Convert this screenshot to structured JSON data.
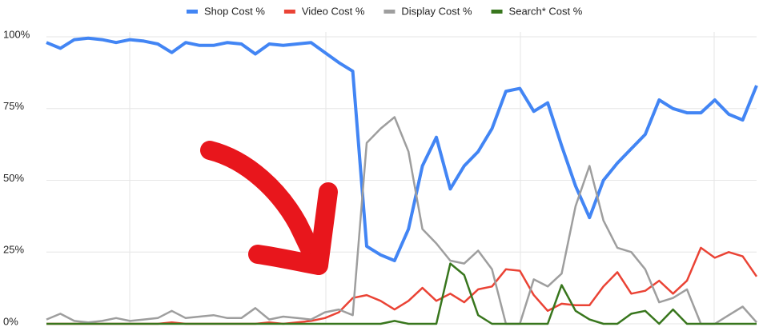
{
  "chart_data": {
    "type": "line",
    "series": [
      {
        "name": "Shop Cost %",
        "color": "#4285f4",
        "values": [
          98,
          96,
          99,
          99.5,
          99,
          98,
          99,
          98.5,
          97.5,
          94.5,
          98,
          97,
          97,
          98,
          97.5,
          94,
          97.5,
          97,
          97.5,
          98,
          94.5,
          91,
          88,
          27,
          24,
          22,
          33,
          55,
          65,
          47,
          55,
          60,
          68,
          81,
          82,
          74,
          77,
          62,
          48,
          37,
          50,
          56,
          61,
          66,
          78,
          75,
          73.5,
          73.5,
          78,
          73,
          71,
          83
        ]
      },
      {
        "name": "Video Cost %",
        "color": "#ea4335",
        "values": [
          0,
          0,
          0,
          0,
          0,
          0,
          0,
          0,
          0,
          0.5,
          0,
          0,
          0,
          0,
          0,
          0,
          0.5,
          0,
          0.5,
          1,
          2,
          4,
          9,
          10,
          8,
          5,
          8,
          12.5,
          8,
          10.5,
          7.5,
          12,
          13,
          19,
          18.5,
          10,
          4.5,
          7,
          6.5,
          6.5,
          13,
          18,
          10.5,
          11.5,
          15,
          10.5,
          15,
          26.5,
          23,
          25,
          23.5,
          16.5
        ]
      },
      {
        "name": "Display Cost %",
        "color": "#9e9e9e",
        "values": [
          1.5,
          3.5,
          1,
          0.5,
          1,
          2,
          1,
          1.5,
          2,
          4.5,
          2,
          2.5,
          3,
          2,
          2,
          5.5,
          1.5,
          2.5,
          2,
          1.5,
          4,
          5,
          3,
          63,
          68,
          72,
          60,
          33,
          28,
          22,
          21,
          25.5,
          19,
          0,
          0,
          15.5,
          13,
          17.5,
          41,
          55,
          36,
          26.5,
          25,
          19,
          7.5,
          9,
          12,
          0,
          0,
          3,
          6,
          0.5
        ]
      },
      {
        "name": "Search* Cost %",
        "color": "#38761d",
        "values": [
          0,
          0,
          0,
          0,
          0,
          0,
          0,
          0,
          0,
          0,
          0,
          0,
          0,
          0,
          0,
          0,
          0,
          0,
          0,
          0,
          0,
          0,
          0,
          0,
          0,
          1,
          0,
          0,
          0,
          21,
          17,
          3,
          0,
          0,
          0,
          0,
          0,
          13.5,
          4.5,
          1.5,
          0,
          0,
          3.5,
          4.5,
          0,
          5,
          0,
          0,
          0,
          0,
          0,
          0
        ]
      }
    ],
    "ylim": [
      0,
      100
    ],
    "yticks": [
      {
        "value": 0,
        "label": "0%"
      },
      {
        "value": 25,
        "label": "25%"
      },
      {
        "value": 50,
        "label": "50%"
      },
      {
        "value": 75,
        "label": "75%"
      },
      {
        "value": 100,
        "label": "100%"
      }
    ],
    "grid": true,
    "legend": "top"
  }
}
